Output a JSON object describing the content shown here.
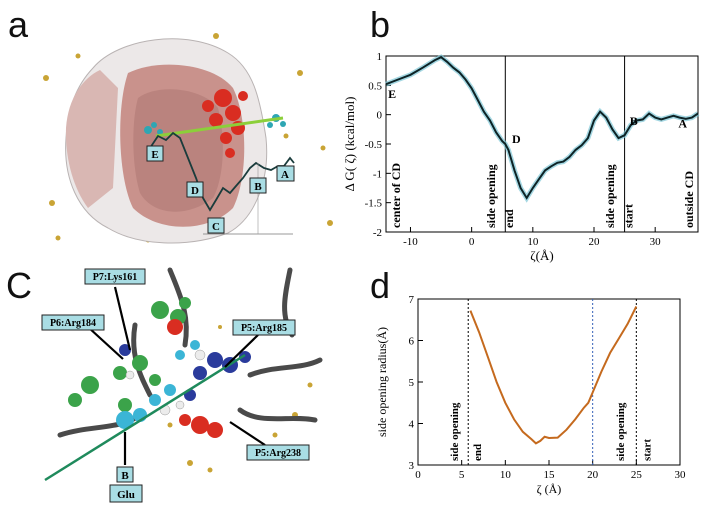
{
  "panels": {
    "a": {
      "label": "a",
      "markers": [
        "E",
        "D",
        "C",
        "B",
        "A"
      ],
      "colors": {
        "protein": "#ecd7d2",
        "inner": "#c9928c",
        "red": "#d92d21",
        "cyan": "#2ea6b3",
        "axis": "#8ccf3a",
        "profile": "#1a3c3c",
        "sphere": "#c9a435"
      }
    },
    "b": {
      "label": "b",
      "chart_data": {
        "type": "line",
        "title": "",
        "xlabel": "ζ(Å)",
        "ylabel": "Δ G( ζ) (kcal/mol)",
        "xlim": [
          -14,
          37
        ],
        "ylim": [
          -2,
          1
        ],
        "xticks": [
          -10,
          0,
          10,
          20,
          30
        ],
        "yticks": [
          1,
          0.5,
          0,
          -0.5,
          -1,
          -1.5,
          -2
        ],
        "series": [
          {
            "name": "ΔG",
            "x": [
              -14,
              -12,
              -10,
              -8,
              -6,
              -5,
              -4,
              -3,
              -2,
              -1,
              0,
              1,
              2,
              3,
              4,
              5,
              5.5,
              6,
              7,
              8,
              9,
              10,
              11,
              12,
              13,
              14,
              15,
              16,
              17,
              18,
              19,
              20,
              21,
              22,
              23,
              24,
              25,
              26,
              27,
              28,
              29,
              30,
              31,
              32,
              33,
              34,
              35,
              36,
              37
            ],
            "y": [
              0.52,
              0.6,
              0.68,
              0.8,
              0.93,
              0.98,
              0.9,
              0.8,
              0.72,
              0.6,
              0.45,
              0.25,
              0.05,
              -0.1,
              -0.3,
              -0.45,
              -0.5,
              -0.6,
              -0.95,
              -1.25,
              -1.42,
              -1.25,
              -1.1,
              -0.95,
              -0.88,
              -0.82,
              -0.8,
              -0.72,
              -0.6,
              -0.52,
              -0.4,
              -0.1,
              0.05,
              -0.05,
              -0.25,
              -0.4,
              -0.35,
              -0.18,
              -0.1,
              -0.08,
              0.02,
              -0.05,
              -0.08,
              -0.05,
              -0.02,
              -0.05,
              -0.07,
              -0.05,
              0.02
            ]
          }
        ],
        "vlines": [
          5.5,
          25
        ],
        "point_labels": [
          {
            "text": "E",
            "x": -13,
            "y": 0.28
          },
          {
            "text": "D",
            "x": 7.3,
            "y": -0.48
          },
          {
            "text": "B",
            "x": 26.5,
            "y": -0.18
          },
          {
            "text": "A",
            "x": 34.5,
            "y": -0.22
          }
        ],
        "annotations": [
          {
            "text": "center of CD",
            "x": -11.7,
            "y": -2.0
          },
          {
            "text": "side opening",
            "x": 3.8,
            "y": -2.0
          },
          {
            "text": "end",
            "x": 6.8,
            "y": -2.0
          },
          {
            "text": "side opening",
            "x": 23.3,
            "y": -2.0
          },
          {
            "text": "start",
            "x": 26.3,
            "y": -2.0
          },
          {
            "text": "outside CD",
            "x": 36.2,
            "y": -2.0
          }
        ]
      }
    },
    "c": {
      "label": "C",
      "callouts": [
        "P7:Lys161",
        "P6:Arg184",
        "P5:Arg185",
        "P5:Arg238",
        "B",
        "Glu"
      ]
    },
    "d": {
      "label": "d",
      "chart_data": {
        "type": "line",
        "title": "",
        "xlabel": "ζ (Å)",
        "ylabel": "side opening radius(Å)",
        "xlim": [
          0,
          30
        ],
        "ylim": [
          3,
          7
        ],
        "xticks": [
          0,
          5,
          10,
          15,
          20,
          25,
          30
        ],
        "yticks": [
          3,
          4,
          5,
          6,
          7
        ],
        "series": [
          {
            "name": "radius",
            "x": [
              6.0,
              7,
              8,
              9,
              10,
              11,
              12,
              13,
              13.5,
              14,
              14.5,
              15,
              16,
              17,
              18,
              19,
              19.5,
              20,
              21,
              22,
              23,
              24,
              25
            ],
            "y": [
              6.72,
              6.2,
              5.6,
              5.0,
              4.5,
              4.1,
              3.8,
              3.62,
              3.52,
              3.58,
              3.68,
              3.65,
              3.66,
              3.85,
              4.1,
              4.38,
              4.5,
              4.75,
              5.25,
              5.7,
              6.05,
              6.4,
              6.82
            ]
          }
        ],
        "vlines": [
          5.75,
          20,
          25
        ],
        "annotations": [
          {
            "text": "side opening",
            "x": 4.6,
            "y": 3.0
          },
          {
            "text": "end",
            "x": 7.2,
            "y": 3.0
          },
          {
            "text": "side opening",
            "x": 23.6,
            "y": 3.0
          },
          {
            "text": "start",
            "x": 26.6,
            "y": 3.0
          }
        ]
      }
    }
  }
}
